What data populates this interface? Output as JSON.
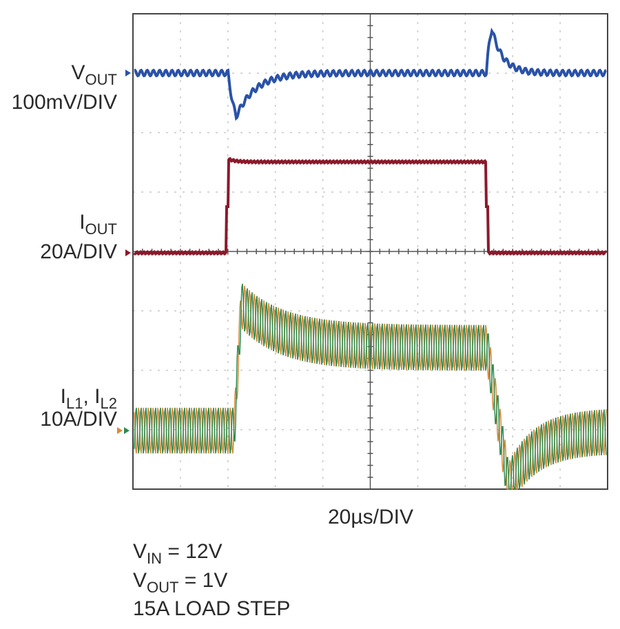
{
  "labels": {
    "vout": {
      "main": "V",
      "sub": "OUT",
      "scale": "100mV/DIV"
    },
    "iout": {
      "main": "I",
      "sub": "OUT",
      "scale": "20A/DIV"
    },
    "il": {
      "main1": "I",
      "sub1": "L1",
      "sep": ", I",
      "sub2": "L2",
      "scale": "10A/DIV"
    },
    "time": "20µs/DIV"
  },
  "notes": [
    {
      "main": "V",
      "sub": "IN",
      "rest": " = 12V"
    },
    {
      "main": "V",
      "sub": "OUT",
      "rest": " = 1V"
    },
    {
      "main": "15A LOAD STEP"
    }
  ]
}
